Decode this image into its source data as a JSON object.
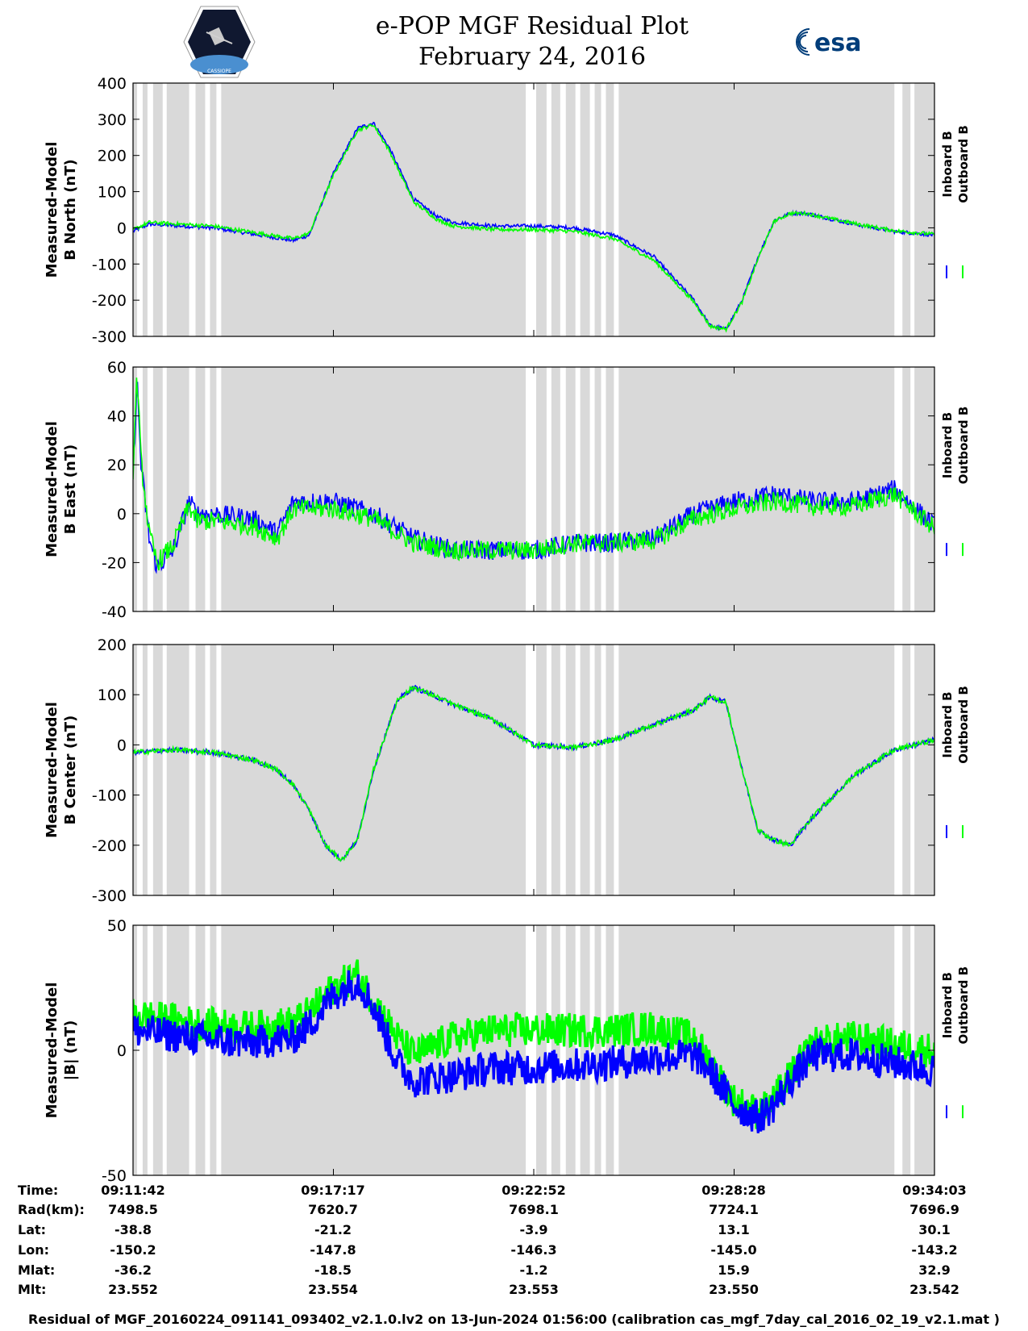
{
  "header": {
    "title_line1": "e-POP MGF Residual Plot",
    "title_line2": "February 24, 2016",
    "logo_left": "CASSIOPE",
    "logo_right": "esa"
  },
  "colors": {
    "inboard": "#0000ff",
    "outboard": "#00ff00",
    "shade": "#d9d9d9",
    "axis": "#000000"
  },
  "legend": {
    "inboard": "Inboard B",
    "outboard": "Outboard B"
  },
  "chart_data": [
    {
      "type": "line",
      "ylabel_line1": "Measured-Model",
      "ylabel_line2": "B North (nT)",
      "ylim": [
        -300,
        400
      ],
      "yticks": [
        "400",
        "300",
        "200",
        "100",
        "0",
        "-100",
        "-200",
        "-300"
      ],
      "ytick_values": [
        400,
        300,
        200,
        100,
        0,
        -100,
        -200,
        -300
      ],
      "noise": 5,
      "series": [
        {
          "name": "Inboard B",
          "color": "#0000ff",
          "x": [
            0,
            0.02,
            0.1,
            0.2,
            0.22,
            0.25,
            0.28,
            0.3,
            0.32,
            0.35,
            0.38,
            0.4,
            0.45,
            0.5,
            0.55,
            0.6,
            0.65,
            0.7,
            0.72,
            0.74,
            0.76,
            0.78,
            0.8,
            0.82,
            0.84,
            0.86,
            0.9,
            0.95,
            1.0
          ],
          "values": [
            -10,
            10,
            0,
            -35,
            -20,
            150,
            275,
            290,
            220,
            80,
            30,
            15,
            5,
            5,
            0,
            -20,
            -80,
            -200,
            -270,
            -280,
            -200,
            -80,
            20,
            40,
            40,
            30,
            10,
            -10,
            -20
          ]
        },
        {
          "name": "Outboard B",
          "color": "#00ff00",
          "x": [
            0,
            0.02,
            0.1,
            0.2,
            0.22,
            0.25,
            0.28,
            0.3,
            0.32,
            0.35,
            0.38,
            0.4,
            0.45,
            0.5,
            0.55,
            0.6,
            0.65,
            0.7,
            0.72,
            0.74,
            0.76,
            0.78,
            0.8,
            0.82,
            0.84,
            0.86,
            0.9,
            0.95,
            1.0
          ],
          "values": [
            -5,
            15,
            5,
            -30,
            -15,
            145,
            270,
            285,
            212,
            72,
            22,
            5,
            -5,
            -5,
            -10,
            -30,
            -90,
            -205,
            -272,
            -280,
            -205,
            -85,
            18,
            40,
            40,
            30,
            12,
            -8,
            -18
          ]
        }
      ]
    },
    {
      "type": "line",
      "ylabel_line1": "Measured-Model",
      "ylabel_line2": "B East (nT)",
      "ylim": [
        -40,
        60
      ],
      "yticks": [
        "60",
        "40",
        "20",
        "0",
        "-20",
        "-40"
      ],
      "ytick_values": [
        60,
        40,
        20,
        0,
        -20,
        -40
      ],
      "noise": 4,
      "series": [
        {
          "name": "Inboard B",
          "color": "#0000ff",
          "x": [
            0,
            0.005,
            0.01,
            0.02,
            0.03,
            0.05,
            0.07,
            0.08,
            0.1,
            0.15,
            0.18,
            0.2,
            0.25,
            0.3,
            0.35,
            0.4,
            0.45,
            0.5,
            0.55,
            0.6,
            0.65,
            0.7,
            0.75,
            0.8,
            0.85,
            0.9,
            0.95,
            1.0
          ],
          "values": [
            15,
            55,
            20,
            -10,
            -22,
            -15,
            5,
            0,
            0,
            -2,
            -8,
            5,
            5,
            0,
            -10,
            -15,
            -15,
            -15,
            -12,
            -12,
            -10,
            0,
            5,
            8,
            5,
            5,
            10,
            -5
          ]
        },
        {
          "name": "Outboard B",
          "color": "#00ff00",
          "x": [
            0,
            0.005,
            0.01,
            0.02,
            0.03,
            0.05,
            0.07,
            0.08,
            0.1,
            0.15,
            0.18,
            0.2,
            0.25,
            0.3,
            0.35,
            0.4,
            0.45,
            0.5,
            0.55,
            0.6,
            0.65,
            0.7,
            0.75,
            0.8,
            0.85,
            0.9,
            0.95,
            1.0
          ],
          "values": [
            18,
            57,
            22,
            -8,
            -20,
            -13,
            3,
            -3,
            -3,
            -5,
            -10,
            2,
            2,
            -2,
            -12,
            -15,
            -15,
            -15,
            -12,
            -12,
            -11,
            -2,
            2,
            5,
            3,
            3,
            8,
            -6
          ]
        }
      ]
    },
    {
      "type": "line",
      "ylabel_line1": "Measured-Model",
      "ylabel_line2": "B Center (nT)",
      "ylim": [
        -300,
        200
      ],
      "yticks": [
        "200",
        "100",
        "0",
        "-100",
        "-200",
        "-300"
      ],
      "ytick_values": [
        200,
        100,
        0,
        -100,
        -200,
        -300
      ],
      "noise": 5,
      "series": [
        {
          "name": "Inboard B",
          "color": "#0000ff",
          "x": [
            0,
            0.05,
            0.1,
            0.15,
            0.18,
            0.2,
            0.22,
            0.24,
            0.26,
            0.28,
            0.3,
            0.33,
            0.35,
            0.38,
            0.4,
            0.45,
            0.5,
            0.55,
            0.6,
            0.65,
            0.7,
            0.72,
            0.74,
            0.76,
            0.78,
            0.8,
            0.82,
            0.85,
            0.9,
            0.95,
            1.0
          ],
          "values": [
            -15,
            -10,
            -15,
            -30,
            -50,
            -80,
            -130,
            -200,
            -230,
            -190,
            -50,
            90,
            115,
            95,
            80,
            50,
            0,
            -5,
            10,
            40,
            70,
            95,
            85,
            -50,
            -170,
            -190,
            -200,
            -140,
            -60,
            -10,
            10
          ]
        },
        {
          "name": "Outboard B",
          "color": "#00ff00",
          "x": [
            0,
            0.05,
            0.1,
            0.15,
            0.18,
            0.2,
            0.22,
            0.24,
            0.26,
            0.28,
            0.3,
            0.33,
            0.35,
            0.38,
            0.4,
            0.45,
            0.5,
            0.55,
            0.6,
            0.65,
            0.7,
            0.72,
            0.74,
            0.76,
            0.78,
            0.8,
            0.82,
            0.85,
            0.9,
            0.95,
            1.0
          ],
          "values": [
            -15,
            -10,
            -15,
            -30,
            -50,
            -80,
            -130,
            -200,
            -230,
            -190,
            -50,
            90,
            115,
            95,
            80,
            50,
            0,
            -5,
            10,
            40,
            70,
            95,
            85,
            -50,
            -170,
            -190,
            -200,
            -140,
            -60,
            -10,
            10
          ]
        }
      ]
    },
    {
      "type": "line",
      "ylabel_line1": "Measured-Model",
      "ylabel_line2": "|B| (nT)",
      "ylim": [
        -50,
        50
      ],
      "yticks": [
        "50",
        "0",
        "-50"
      ],
      "ytick_values": [
        50,
        0,
        -50
      ],
      "noise": 7,
      "series": [
        {
          "name": "Outboard B",
          "color": "#00ff00",
          "x": [
            0,
            0.05,
            0.1,
            0.15,
            0.2,
            0.22,
            0.25,
            0.28,
            0.3,
            0.33,
            0.35,
            0.4,
            0.45,
            0.5,
            0.55,
            0.6,
            0.65,
            0.7,
            0.72,
            0.75,
            0.78,
            0.8,
            0.82,
            0.85,
            0.9,
            0.95,
            1.0
          ],
          "values": [
            14,
            12,
            10,
            9,
            11,
            15,
            25,
            30,
            20,
            5,
            -2,
            5,
            8,
            8,
            8,
            8,
            9,
            5,
            -5,
            -20,
            -25,
            -20,
            -10,
            3,
            5,
            2,
            0
          ]
        },
        {
          "name": "Inboard B",
          "color": "#0000ff",
          "x": [
            0,
            0.05,
            0.1,
            0.15,
            0.2,
            0.22,
            0.25,
            0.28,
            0.3,
            0.33,
            0.35,
            0.4,
            0.45,
            0.5,
            0.55,
            0.6,
            0.65,
            0.7,
            0.72,
            0.75,
            0.78,
            0.8,
            0.82,
            0.85,
            0.9,
            0.95,
            1.0
          ],
          "values": [
            8,
            6,
            4,
            3,
            5,
            10,
            22,
            28,
            18,
            -5,
            -12,
            -10,
            -7,
            -7,
            -6,
            -5,
            -3,
            -2,
            -8,
            -22,
            -27,
            -22,
            -12,
            -2,
            -2,
            -5,
            -8
          ]
        }
      ]
    }
  ],
  "x_ticks": [
    0,
    0.25,
    0.5,
    0.75,
    1.0
  ],
  "gaps": [
    [
      0.005,
      0.012
    ],
    [
      0.018,
      0.025
    ],
    [
      0.037,
      0.042
    ],
    [
      0.07,
      0.078
    ],
    [
      0.09,
      0.096
    ],
    [
      0.104,
      0.11
    ],
    [
      0.49,
      0.503
    ],
    [
      0.516,
      0.522
    ],
    [
      0.533,
      0.54
    ],
    [
      0.552,
      0.558
    ],
    [
      0.57,
      0.576
    ],
    [
      0.584,
      0.59
    ],
    [
      0.6,
      0.606
    ],
    [
      0.95,
      0.96
    ],
    [
      0.97,
      0.975
    ]
  ],
  "info": {
    "labels": [
      "Time:",
      "Rad(km):",
      "Lat:",
      "Lon:",
      "Mlat:",
      "Mlt:"
    ],
    "columns": [
      [
        "09:11:42",
        "7498.5",
        "-38.8",
        "-150.2",
        "-36.2",
        "23.552"
      ],
      [
        "09:17:17",
        "7620.7",
        "-21.2",
        "-147.8",
        "-18.5",
        "23.554"
      ],
      [
        "09:22:52",
        "7698.1",
        "-3.9",
        "-146.3",
        "-1.2",
        "23.553"
      ],
      [
        "09:28:28",
        "7724.1",
        "13.1",
        "-145.0",
        "15.9",
        "23.550"
      ],
      [
        "09:34:03",
        "7696.9",
        "30.1",
        "-143.2",
        "32.9",
        "23.542"
      ]
    ]
  },
  "footer": "Residual of MGF_20160224_091141_093402_v2.1.0.lv2 on 13-Jun-2024 01:56:00 (calibration cas_mgf_7day_cal_2016_02_19_v2.1.mat )"
}
